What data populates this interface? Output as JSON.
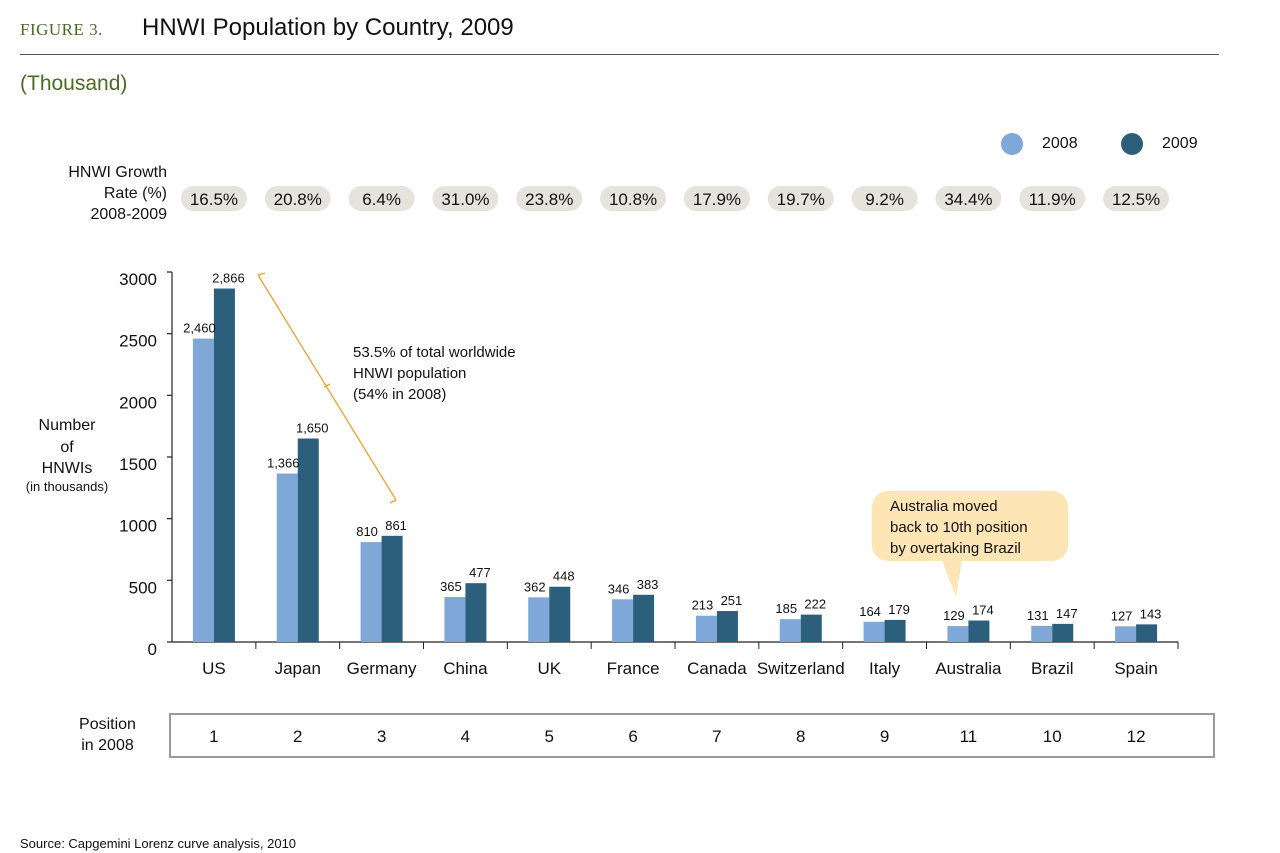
{
  "header": {
    "figure_label": "FIGURE 3.",
    "title": "HNWI Population by Country, 2009",
    "unit": "(Thousand)"
  },
  "source": "Source: Capgemini Lorenz curve analysis, 2010",
  "growth_label": [
    "HNWI Growth",
    "Rate (%)",
    "2008-2009"
  ],
  "position_label": [
    "Position",
    "in 2008"
  ],
  "annotation": [
    "53.5% of total worldwide",
    "HNWI population",
    "(54% in 2008)"
  ],
  "callout": [
    "Australia moved",
    "back to 10th position",
    "by overtaking Brazil"
  ],
  "colors": {
    "s2008": "#7fa7d8",
    "s2009": "#2b5f7c",
    "pill": "#e4e4dc",
    "axis": "#222222",
    "bracket": "#f0a030"
  },
  "chart_data": {
    "type": "bar",
    "title": "HNWI Population by Country, 2009",
    "ylabel_lines": [
      "Number",
      "of",
      "HNWIs",
      "(in thousands)"
    ],
    "ylim": [
      0,
      3000
    ],
    "yticks": [
      0,
      500,
      1000,
      1500,
      2000,
      2500,
      3000
    ],
    "categories": [
      "US",
      "Japan",
      "Germany",
      "China",
      "UK",
      "France",
      "Canada",
      "Switzerland",
      "Italy",
      "Australia",
      "Brazil",
      "Spain"
    ],
    "series": [
      {
        "name": "2008",
        "values": [
          2460,
          1366,
          810,
          365,
          362,
          346,
          213,
          185,
          164,
          129,
          131,
          127
        ],
        "labels": [
          "2,460",
          "1,366",
          "810",
          "365",
          "362",
          "346",
          "213",
          "185",
          "164",
          "129",
          "131",
          "127"
        ]
      },
      {
        "name": "2009",
        "values": [
          2866,
          1650,
          861,
          477,
          448,
          383,
          251,
          222,
          179,
          174,
          147,
          143
        ],
        "labels": [
          "2,866",
          "1,650",
          "861",
          "477",
          "448",
          "383",
          "251",
          "222",
          "179",
          "174",
          "147",
          "143"
        ]
      }
    ],
    "growth_rates": [
      "16.5%",
      "20.8%",
      "6.4%",
      "31.0%",
      "23.8%",
      "10.8%",
      "17.9%",
      "19.7%",
      "9.2%",
      "34.4%",
      "11.9%",
      "12.5%"
    ],
    "positions_2008": [
      "1",
      "2",
      "3",
      "4",
      "5",
      "6",
      "7",
      "8",
      "9",
      "11",
      "10",
      "12"
    ],
    "legend": [
      "2008",
      "2009"
    ],
    "legend_position": "top-right"
  }
}
